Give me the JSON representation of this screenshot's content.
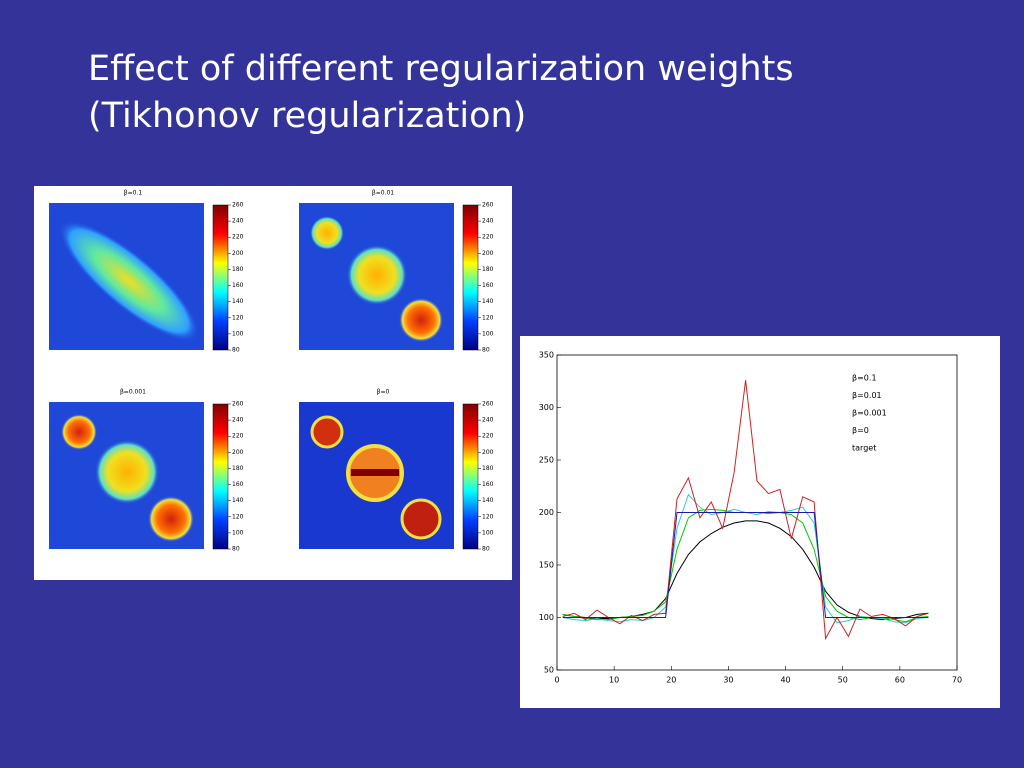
{
  "title_lines": [
    "Effect of different regularization weights",
    "(Tikhonov regularization)"
  ],
  "panels": [
    {
      "title": "β=0.1"
    },
    {
      "title": "β=0.01"
    },
    {
      "title": "β=0.001"
    },
    {
      "title": "β=0"
    }
  ],
  "colorbar_ticks": [
    260,
    240,
    220,
    200,
    180,
    160,
    140,
    120,
    100,
    80
  ],
  "chart_data": {
    "type": "line",
    "x": [
      1,
      3,
      5,
      7,
      9,
      11,
      13,
      15,
      17,
      19,
      21,
      23,
      25,
      27,
      29,
      31,
      33,
      35,
      37,
      39,
      41,
      43,
      45,
      47,
      49,
      51,
      53,
      55,
      57,
      59,
      61,
      63,
      65
    ],
    "series": [
      {
        "name": "β=0.1",
        "color": "#000000",
        "values": [
          103,
          101,
          100,
          99,
          99,
          100,
          101,
          103,
          106,
          118,
          142,
          160,
          172,
          180,
          186,
          190,
          192,
          192,
          190,
          185,
          177,
          165,
          148,
          125,
          112,
          105,
          101,
          99,
          98,
          99,
          100,
          103,
          104
        ]
      },
      {
        "name": "β=0.01",
        "color": "#00cc00",
        "values": [
          103,
          101,
          99,
          98,
          98,
          100,
          101,
          102,
          106,
          115,
          165,
          195,
          202,
          203,
          202,
          200,
          200,
          200,
          199,
          200,
          198,
          190,
          165,
          120,
          106,
          100,
          98,
          100,
          100,
          98,
          96,
          100,
          101
        ]
      },
      {
        "name": "β=0.001",
        "color": "#33cccc",
        "values": [
          100,
          98,
          97,
          99,
          97,
          96,
          98,
          97,
          100,
          110,
          185,
          217,
          205,
          198,
          200,
          203,
          200,
          198,
          201,
          200,
          202,
          205,
          190,
          110,
          95,
          97,
          101,
          100,
          99,
          96,
          95,
          99,
          100
        ]
      },
      {
        "name": "β=0",
        "color": "#cc2222",
        "values": [
          101,
          104,
          98,
          107,
          100,
          94,
          102,
          97,
          103,
          104,
          213,
          233,
          195,
          210,
          185,
          238,
          326,
          230,
          218,
          222,
          175,
          215,
          210,
          80,
          100,
          82,
          108,
          101,
          103,
          99,
          92,
          101,
          104
        ]
      },
      {
        "name": "target",
        "color": "#1a1aaa",
        "values": [
          100,
          100,
          100,
          100,
          100,
          100,
          100,
          100,
          100,
          100,
          200,
          200,
          200,
          200,
          200,
          200,
          200,
          200,
          200,
          200,
          200,
          200,
          200,
          100,
          100,
          100,
          100,
          100,
          100,
          100,
          100,
          100,
          100
        ]
      }
    ],
    "xlim": [
      0,
      70
    ],
    "xticks": [
      0,
      10,
      20,
      30,
      40,
      50,
      60,
      70
    ],
    "ylim": [
      50,
      350
    ],
    "yticks": [
      50,
      100,
      150,
      200,
      250,
      300,
      350
    ],
    "legend": "upper right"
  }
}
